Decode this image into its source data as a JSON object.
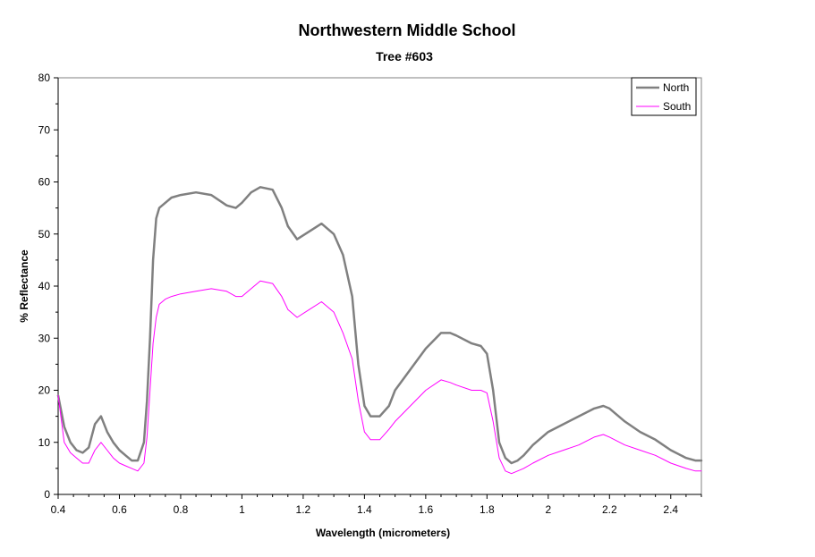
{
  "chart_data": {
    "type": "line",
    "title": "Northwestern Middle School",
    "subtitle": "Tree #603",
    "xlabel": "Wavelength (micrometers)",
    "ylabel": "% Reflectance",
    "xlim": [
      0.4,
      2.5
    ],
    "ylim": [
      0,
      80
    ],
    "x_ticks": [
      0.4,
      0.6,
      0.8,
      1,
      1.2,
      1.4,
      1.6,
      1.8,
      2,
      2.2,
      2.4
    ],
    "x_tick_labels": [
      "0.4",
      "0.6",
      "0.8",
      "1",
      "1.2",
      "1.4",
      "1.6",
      "1.8",
      "2",
      "2.2",
      "2.4"
    ],
    "y_ticks": [
      0,
      10,
      20,
      30,
      40,
      50,
      60,
      70,
      80
    ],
    "y_tick_labels": [
      "0",
      "10",
      "20",
      "30",
      "40",
      "50",
      "60",
      "70",
      "80"
    ],
    "grid": false,
    "legend_position": "top-right",
    "x": [
      0.4,
      0.42,
      0.44,
      0.46,
      0.48,
      0.5,
      0.52,
      0.54,
      0.56,
      0.58,
      0.6,
      0.62,
      0.64,
      0.66,
      0.68,
      0.69,
      0.7,
      0.71,
      0.72,
      0.73,
      0.74,
      0.75,
      0.77,
      0.8,
      0.85,
      0.9,
      0.95,
      0.98,
      1.0,
      1.03,
      1.06,
      1.1,
      1.13,
      1.15,
      1.18,
      1.22,
      1.26,
      1.3,
      1.33,
      1.36,
      1.38,
      1.4,
      1.42,
      1.45,
      1.48,
      1.5,
      1.55,
      1.6,
      1.65,
      1.68,
      1.7,
      1.75,
      1.78,
      1.8,
      1.82,
      1.84,
      1.86,
      1.88,
      1.9,
      1.92,
      1.95,
      2.0,
      2.05,
      2.1,
      2.15,
      2.18,
      2.2,
      2.25,
      2.3,
      2.35,
      2.4,
      2.45,
      2.48,
      2.5
    ],
    "series": [
      {
        "name": "North",
        "color": "#808080",
        "values": [
          19,
          13,
          10,
          8.5,
          8,
          9,
          13.5,
          15,
          12,
          10,
          8.5,
          7.5,
          6.5,
          6.5,
          10,
          18,
          30,
          45,
          53,
          55,
          55.5,
          56,
          57,
          57.5,
          58,
          57.5,
          55.5,
          55,
          56,
          58,
          59,
          58.5,
          55,
          51.5,
          49,
          50.5,
          52,
          50,
          46,
          38,
          25,
          17,
          15,
          15,
          17,
          20,
          24,
          28,
          31,
          31,
          30.5,
          29,
          28.5,
          27,
          20,
          10,
          7,
          6,
          6.5,
          7.5,
          9.5,
          12,
          13.5,
          15,
          16.5,
          17,
          16.5,
          14,
          12,
          10.5,
          8.5,
          7,
          6.5,
          6.5
        ],
        "stroke_width": 2.5
      },
      {
        "name": "South",
        "color": "#ff00ff",
        "values": [
          19,
          10,
          8,
          7,
          6,
          6,
          8.5,
          10,
          8.5,
          7,
          6,
          5.5,
          5,
          4.5,
          6,
          11,
          20,
          29,
          34,
          36.5,
          37,
          37.5,
          38,
          38.5,
          39,
          39.5,
          39,
          38,
          38,
          39.5,
          41,
          40.5,
          38,
          35.5,
          34,
          35.5,
          37,
          35,
          31,
          26,
          18,
          12,
          10.5,
          10.5,
          12.5,
          14,
          17,
          20,
          22,
          21.5,
          21,
          20,
          20,
          19.5,
          14,
          7,
          4.5,
          4,
          4.5,
          5,
          6,
          7.5,
          8.5,
          9.5,
          11,
          11.5,
          11,
          9.5,
          8.5,
          7.5,
          6,
          5,
          4.5,
          4.5
        ],
        "stroke_width": 1
      }
    ]
  }
}
